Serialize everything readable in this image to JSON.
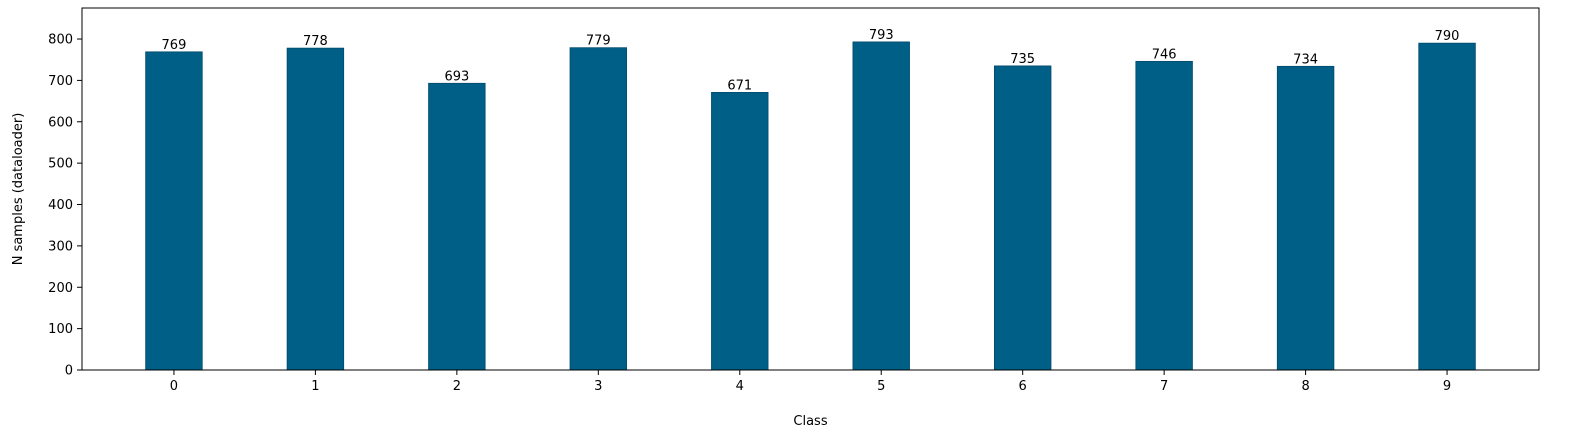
{
  "chart_data": {
    "type": "bar",
    "title": "",
    "xlabel": "Class",
    "ylabel": "N samples (dataloader)",
    "categories": [
      "0",
      "1",
      "2",
      "3",
      "4",
      "5",
      "6",
      "7",
      "8",
      "9"
    ],
    "values": [
      769,
      778,
      693,
      779,
      671,
      793,
      735,
      746,
      734,
      790
    ],
    "data_labels": [
      "769",
      "778",
      "693",
      "779",
      "671",
      "793",
      "735",
      "746",
      "734",
      "790"
    ],
    "ylim": [
      0,
      875
    ],
    "yticks": [
      0,
      100,
      200,
      300,
      400,
      500,
      600,
      700,
      800
    ],
    "ytick_labels": [
      "0",
      "100",
      "200",
      "300",
      "400",
      "500",
      "600",
      "700",
      "800"
    ],
    "bar_color": "#005f87",
    "bar_edge_color": "#004a6b",
    "grid": false,
    "legend": "none"
  }
}
